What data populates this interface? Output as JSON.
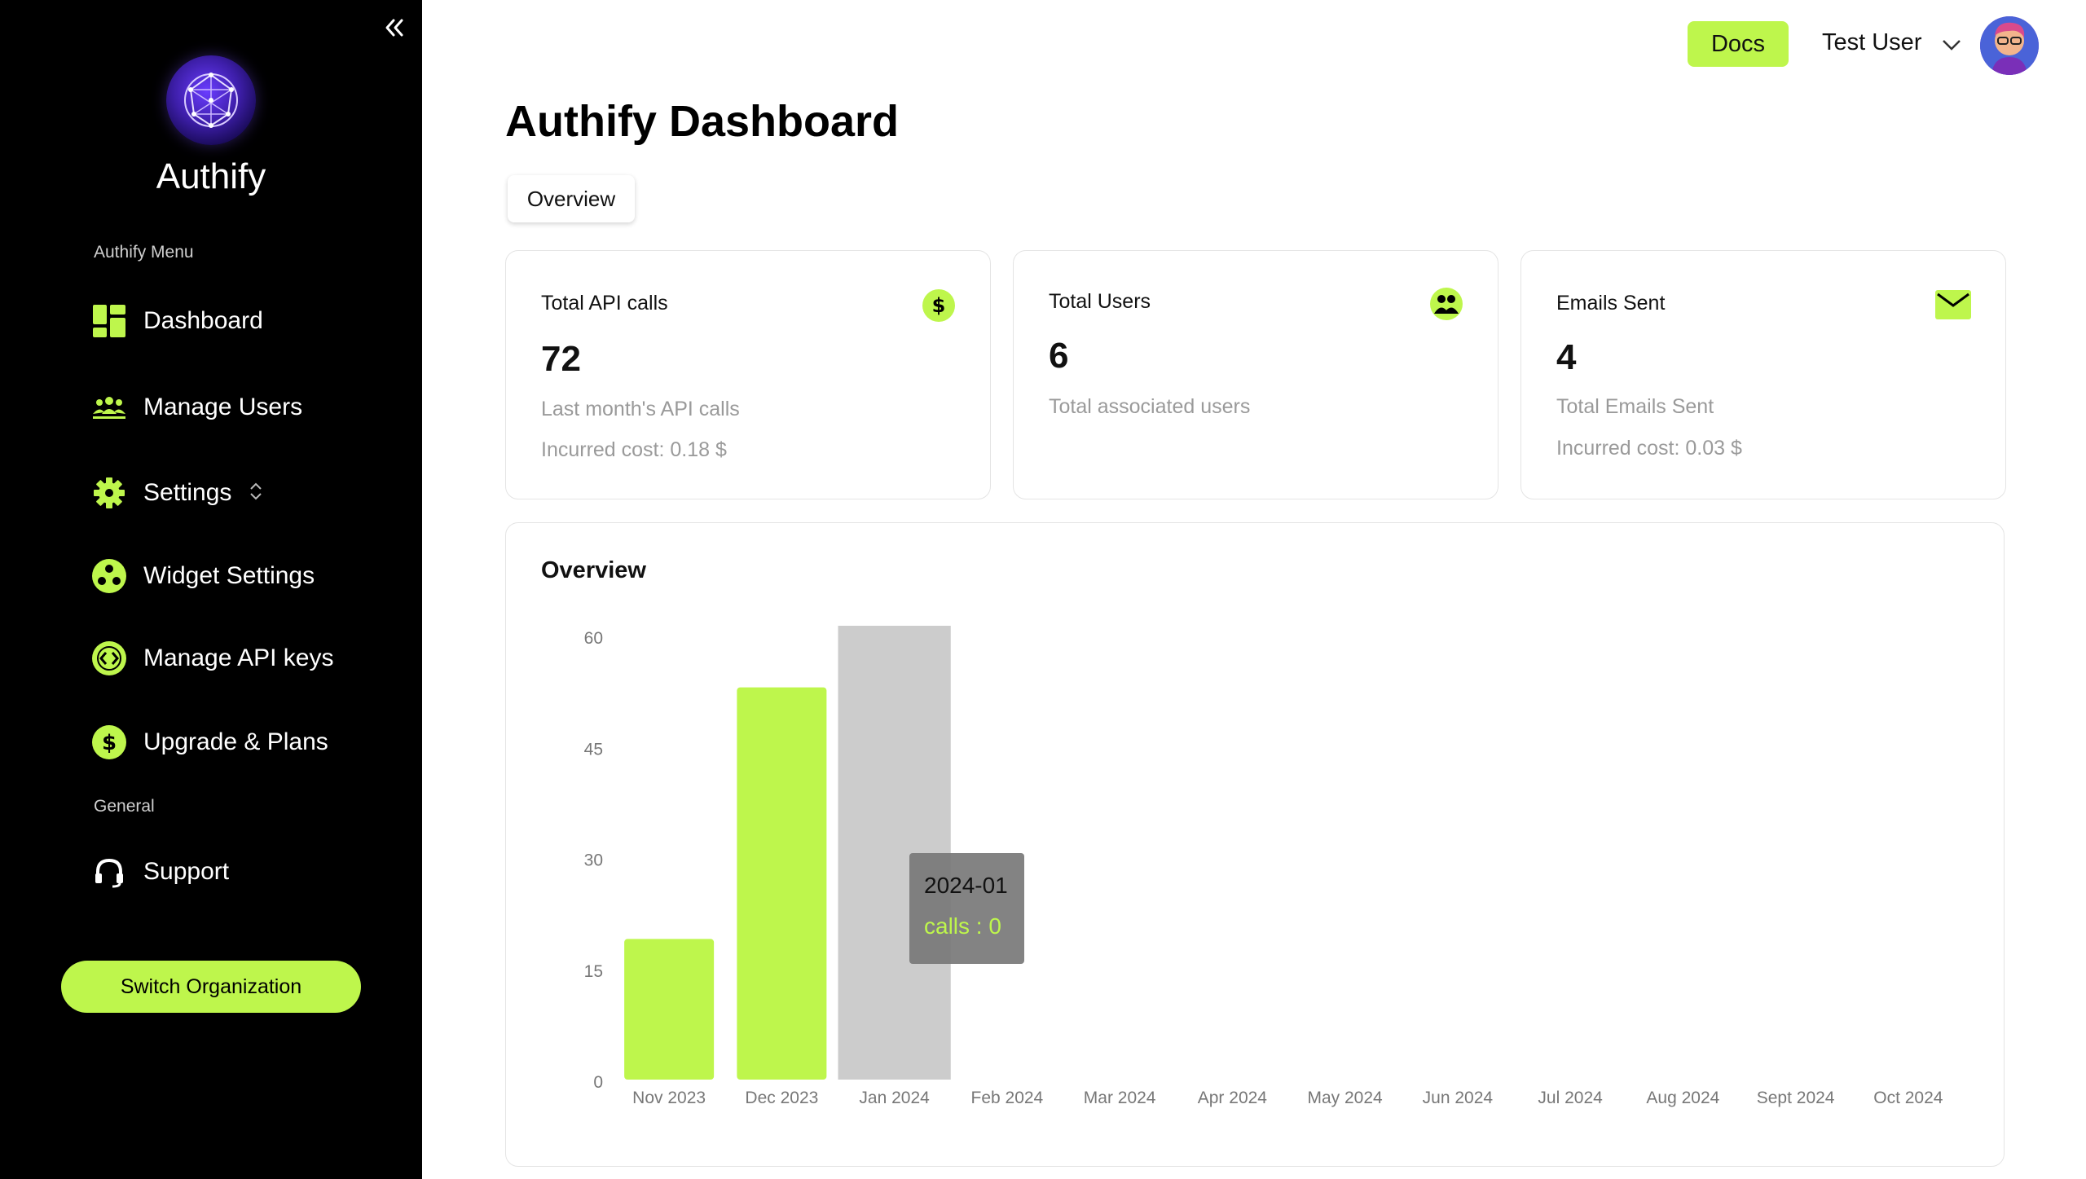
{
  "sidebar": {
    "app_name": "Authify",
    "menu_label": "Authify Menu",
    "general_label": "General",
    "items": [
      {
        "label": "Dashboard",
        "icon": "dashboard-icon"
      },
      {
        "label": "Manage Users",
        "icon": "users-icon"
      },
      {
        "label": "Settings",
        "icon": "gear-icon"
      },
      {
        "label": "Widget Settings",
        "icon": "widget-icon"
      },
      {
        "label": "Manage API keys",
        "icon": "code-icon"
      },
      {
        "label": "Upgrade & Plans",
        "icon": "dollar-icon"
      }
    ],
    "support_label": "Support",
    "switch_org_label": "Switch Organization"
  },
  "header": {
    "docs_label": "Docs",
    "user_name": "Test User"
  },
  "page": {
    "title": "Authify Dashboard",
    "tab_label": "Overview"
  },
  "cards": [
    {
      "title": "Total API calls",
      "value": "72",
      "sub1": "Last month's API calls",
      "sub2": "Incurred cost: 0.18 $",
      "icon": "dollar-icon"
    },
    {
      "title": "Total Users",
      "value": "6",
      "sub1": "Total associated users",
      "icon": "users-icon"
    },
    {
      "title": "Emails Sent",
      "value": "4",
      "sub1": "Total Emails Sent",
      "sub2": "Incurred cost: 0.03 $",
      "icon": "mail-icon"
    }
  ],
  "chart": {
    "title": "Overview",
    "tooltip_label": "2024-01",
    "tooltip_value": "calls : 0"
  },
  "colors": {
    "accent": "#bef64c",
    "sidebar_bg": "#000000",
    "hover_bar": "#cccccc"
  },
  "chart_data": {
    "type": "bar",
    "categories": [
      "Nov 2023",
      "Dec 2023",
      "Jan 2024",
      "Feb 2024",
      "Mar 2024",
      "Apr 2024",
      "May 2024",
      "Jun 2024",
      "Jul 2024",
      "Aug 2024",
      "Sept 2024",
      "Oct 2024"
    ],
    "values": [
      19,
      53,
      0,
      0,
      0,
      0,
      0,
      0,
      0,
      0,
      0,
      0
    ],
    "yticks": [
      0,
      15,
      30,
      45,
      60
    ],
    "ylim": [
      0,
      60
    ],
    "hover_category_index": 2,
    "title": "Overview",
    "xlabel": "",
    "ylabel": ""
  }
}
